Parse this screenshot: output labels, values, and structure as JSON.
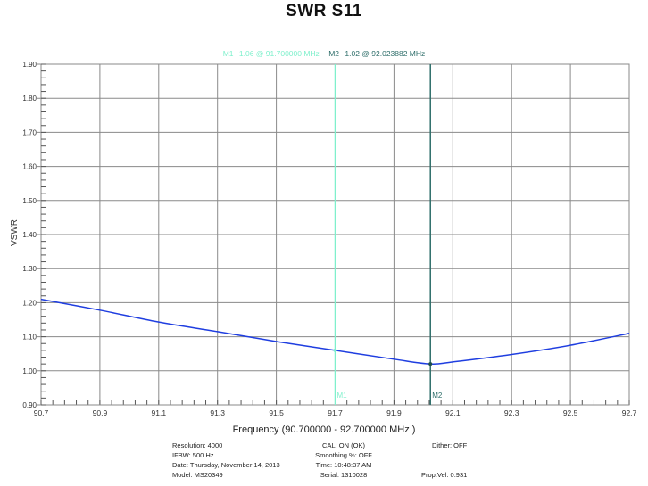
{
  "chart_data": {
    "type": "line",
    "title": "SWR S11",
    "xlabel": "Frequency (90.700000 - 92.700000 MHz )",
    "ylabel": "VSWR",
    "xlim": [
      90.7,
      92.7
    ],
    "ylim": [
      0.9,
      1.9
    ],
    "grid": true,
    "x_ticks": [
      "90.7",
      "90.9",
      "91.1",
      "91.3",
      "91.5",
      "91.7",
      "91.9",
      "92.1",
      "92.3",
      "92.5",
      "92.7"
    ],
    "y_ticks": [
      "0.90",
      "1.00",
      "1.10",
      "1.20",
      "1.30",
      "1.40",
      "1.50",
      "1.60",
      "1.70",
      "1.80",
      "1.90"
    ],
    "series": [
      {
        "name": "S11 VSWR",
        "color": "#1f3ee0",
        "x": [
          90.7,
          90.9,
          91.1,
          91.3,
          91.5,
          91.7,
          91.9,
          92.024,
          92.1,
          92.3,
          92.5,
          92.7
        ],
        "y": [
          1.21,
          1.178,
          1.143,
          1.115,
          1.086,
          1.06,
          1.034,
          1.02,
          1.026,
          1.048,
          1.075,
          1.11
        ]
      }
    ],
    "markers": [
      {
        "name": "M1",
        "x": 91.7,
        "y": 1.06,
        "color": "#7ff0cc",
        "readout": "1.06 @ 91.700000 MHz"
      },
      {
        "name": "M2",
        "x": 92.023882,
        "y": 1.02,
        "color": "#2e6e6a",
        "readout": "1.02 @ 92.023882 MHz"
      }
    ]
  },
  "footer": {
    "resolution": "Resolution: 4000",
    "ifbw": "IFBW: 500 Hz",
    "date": "Date: Thursday, November 14, 2013",
    "model": "Model: MS20349",
    "cal": "CAL: ON (OK)",
    "smoothing": "Smoothing %:  OFF",
    "time": "Time: 10:48:37 AM",
    "serial": "Serial: 1310028",
    "dither": "Dither:  OFF",
    "prop_vel": "Prop.Vel: 0.931"
  }
}
